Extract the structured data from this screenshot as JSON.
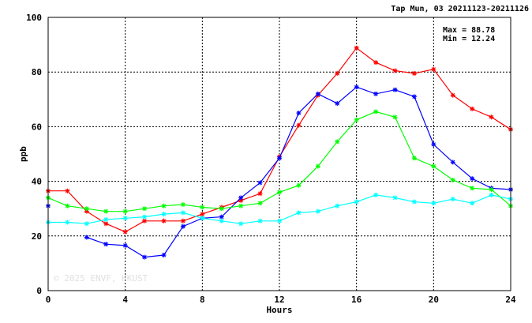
{
  "chart_data": {
    "type": "line",
    "title": "Tap Mun, 03 20211123-20211126",
    "xlabel": "Hours",
    "ylabel": "ppb",
    "xlim": [
      0,
      24
    ],
    "ylim": [
      0,
      100
    ],
    "x_ticks": [
      "0",
      "4",
      "8",
      "12",
      "16",
      "20",
      "24"
    ],
    "y_ticks": [
      "0",
      "20",
      "40",
      "60",
      "80",
      "100"
    ],
    "grid": true,
    "stats": {
      "max": "Max = 88.78",
      "min": "Min = 12.24"
    },
    "watermark": "© 2025  ENVF, HKUST",
    "x": [
      0,
      1,
      2,
      3,
      4,
      5,
      6,
      7,
      8,
      9,
      10,
      11,
      12,
      13,
      14,
      15,
      16,
      17,
      18,
      19,
      20,
      21,
      22,
      23,
      24
    ],
    "series": [
      {
        "color": "#ff0000",
        "values": [
          36.5,
          36.5,
          29,
          24.5,
          21.5,
          25.5,
          25.5,
          25.5,
          28,
          30.5,
          33,
          35.5,
          49,
          60.5,
          71.5,
          79.5,
          88.78,
          83.5,
          80.5,
          79.5,
          81,
          71.5,
          66.5,
          63.5,
          59
        ]
      },
      {
        "color": "#0000ff",
        "values": [
          31,
          null,
          19.5,
          17,
          16.5,
          12.24,
          13,
          23.5,
          26.5,
          27,
          34,
          39.5,
          48.5,
          65,
          72,
          68.5,
          74.5,
          72,
          73.5,
          71,
          53.5,
          47,
          41,
          37.5,
          37
        ]
      },
      {
        "color": "#00ff00",
        "values": [
          34,
          31,
          30,
          29,
          29,
          30,
          31,
          31.5,
          30.5,
          30,
          31,
          32,
          36,
          38.5,
          45.5,
          54.5,
          62.5,
          65.5,
          63.5,
          48.5,
          45.5,
          40.5,
          37.5,
          37,
          31
        ]
      },
      {
        "color": "#00ffff",
        "values": [
          25,
          25,
          24.5,
          26,
          26.5,
          27,
          28,
          28.5,
          26.5,
          25.5,
          24.5,
          25.5,
          25.5,
          28.5,
          29,
          31,
          32.5,
          35,
          34,
          32.5,
          32,
          33.5,
          32,
          35,
          33.5
        ]
      }
    ]
  }
}
